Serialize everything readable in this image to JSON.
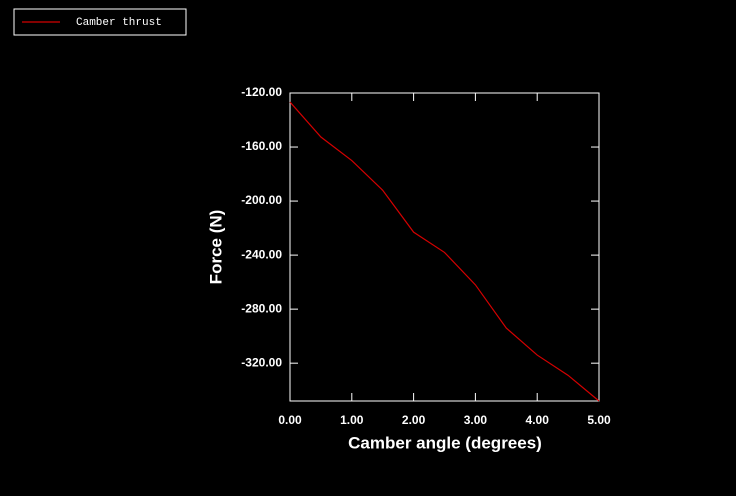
{
  "chart_data": {
    "type": "line",
    "xlabel": "Camber angle (degrees)",
    "ylabel": "Force (N)",
    "x": [
      0,
      0.5,
      1,
      1.5,
      2,
      2.5,
      3,
      3.5,
      4,
      4.5,
      5
    ],
    "series": [
      {
        "name": "Camber thrust",
        "color": "#d40000",
        "values": [
          -126.7,
          -152.6,
          -170,
          -192,
          -223,
          -238,
          -262,
          -294,
          -314,
          -329,
          -348
        ]
      }
    ],
    "xlim": [
      0,
      5
    ],
    "xticks": [
      {
        "value": 0,
        "label": "0.00"
      },
      {
        "value": 1,
        "label": "1.00"
      },
      {
        "value": 2,
        "label": "2.00"
      },
      {
        "value": 3,
        "label": "3.00"
      },
      {
        "value": 4,
        "label": "4.00"
      },
      {
        "value": 5,
        "label": "5.00"
      }
    ],
    "ylim": [
      -348,
      -120
    ],
    "yticks": [
      {
        "value": -120,
        "label": "-120.00"
      },
      {
        "value": -160,
        "label": "-160.00"
      },
      {
        "value": -200,
        "label": "-200.00"
      },
      {
        "value": -240,
        "label": "-240.00"
      },
      {
        "value": -280,
        "label": "-280.00"
      },
      {
        "value": -320,
        "label": "-320.00"
      }
    ],
    "legend": "upper left",
    "grid": false
  }
}
